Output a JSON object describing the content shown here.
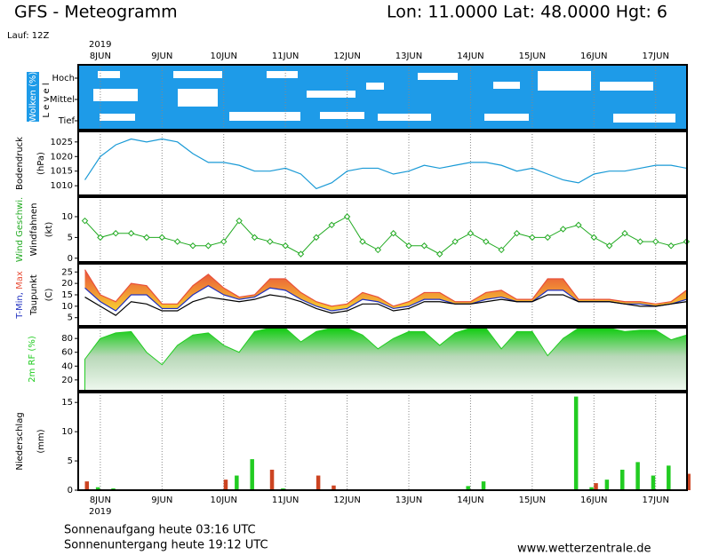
{
  "header": {
    "title": "GFS - Meteogramm",
    "location": "Lon: 11.0000 Lat: 48.0000 Hgt: 6",
    "run": "Lauf: 12Z"
  },
  "time_axis": {
    "year": "2019",
    "xlim": [
      -8.6,
      228.2
    ],
    "xticks": [
      {
        "value": 0,
        "label": "8JUN"
      },
      {
        "value": 24,
        "label": "9JUN"
      },
      {
        "value": 48,
        "label": "10JUN"
      },
      {
        "value": 72,
        "label": "11JUN"
      },
      {
        "value": 96,
        "label": "12JUN"
      },
      {
        "value": 120,
        "label": "13JUN"
      },
      {
        "value": 144,
        "label": "14JUN"
      },
      {
        "value": 168,
        "label": "15JUN"
      },
      {
        "value": 192,
        "label": "16JUN"
      },
      {
        "value": 216,
        "label": "17JUN"
      }
    ],
    "x": [
      -6,
      0,
      6,
      12,
      18,
      24,
      30,
      36,
      42,
      48,
      54,
      60,
      66,
      72,
      78,
      84,
      90,
      96,
      102,
      108,
      114,
      120,
      126,
      132,
      138,
      144,
      150,
      156,
      162,
      168,
      174,
      180,
      186,
      192,
      198,
      204,
      210,
      216,
      222,
      228
    ]
  },
  "chart_data": [
    {
      "type": "cloud",
      "ylabel": "Wolken (%)",
      "ylabel2": "L e v e l",
      "levels": [
        "Hoch",
        "Mittel",
        "Tief"
      ],
      "color": "#1e9be8"
    },
    {
      "type": "line",
      "ylabel": "Bodendruck",
      "yunit": "(hPa)",
      "ylim": [
        1006.7,
        1028.6
      ],
      "yticks": [
        1010,
        1015,
        1020,
        1025
      ],
      "color": "#1a9ad6",
      "values": [
        1012,
        1020,
        1024,
        1026,
        1025,
        1026,
        1025,
        1021,
        1018,
        1018,
        1017,
        1015,
        1015,
        1016,
        1014,
        1009,
        1011,
        1015,
        1016,
        1016,
        1014,
        1015,
        1017,
        1016,
        1017,
        1018,
        1018,
        1017,
        1015,
        1016,
        1014,
        1012,
        1011,
        1014,
        1015,
        1015,
        1016,
        1017,
        1017,
        1016
      ]
    },
    {
      "type": "line",
      "ylabel": "Wind Geschwi.",
      "ylabel2": "Windfahnen",
      "yunit": "(kt)",
      "ylim": [
        -0.9,
        14.7
      ],
      "yticks": [
        0,
        5,
        10
      ],
      "color": "#22aa22",
      "markers": true,
      "values": [
        9,
        5,
        6,
        6,
        5,
        5,
        4,
        3,
        3,
        4,
        9,
        5,
        4,
        3,
        1,
        5,
        8,
        10,
        4,
        2,
        6,
        3,
        3,
        1,
        4,
        6,
        4,
        2,
        6,
        5,
        5,
        7,
        8,
        5,
        3,
        6,
        4,
        4,
        3,
        4
      ]
    },
    {
      "type": "band",
      "ylabel_min": "T-Min,",
      "ylabel_max": "Max",
      "ylabel2": "Taupunkt",
      "yunit": "(C)",
      "ylim": [
        1.4,
        28.6
      ],
      "yticks": [
        5,
        10,
        15,
        20,
        25
      ],
      "series": [
        {
          "color": "#e8503a",
          "values": [
            26,
            15,
            12,
            20,
            19,
            11,
            11,
            19,
            24,
            18,
            14,
            15,
            22,
            22,
            16,
            12,
            10,
            11,
            16,
            14,
            10,
            12,
            16,
            16,
            12,
            12,
            16,
            17,
            13,
            13,
            22,
            22,
            13,
            13,
            13,
            12,
            12,
            11,
            12,
            17
          ]
        },
        {
          "color": "#2030c0",
          "values": [
            18,
            12,
            8,
            15,
            15,
            9,
            9,
            15,
            19,
            15,
            13,
            14,
            18,
            17,
            13,
            10,
            8,
            9,
            13,
            12,
            9,
            10,
            13,
            13,
            11,
            11,
            13,
            14,
            12,
            12,
            17,
            17,
            12,
            12,
            12,
            11,
            11,
            10,
            11,
            13
          ]
        },
        {
          "color": "#000000",
          "values": [
            14,
            10,
            6,
            12,
            11,
            8,
            8,
            12,
            14,
            13,
            12,
            13,
            15,
            14,
            12,
            9,
            7,
            8,
            11,
            11,
            8,
            9,
            12,
            12,
            11,
            11,
            12,
            13,
            12,
            12,
            15,
            15,
            12,
            12,
            12,
            11,
            10,
            10,
            11,
            12
          ]
        }
      ]
    },
    {
      "type": "area",
      "ylabel": "2m RF (%)",
      "ylim": [
        4.4,
        95.6
      ],
      "yticks": [
        20,
        40,
        60,
        80
      ],
      "color": "#22cc22",
      "values": [
        50,
        80,
        88,
        90,
        60,
        42,
        70,
        85,
        88,
        70,
        60,
        90,
        95,
        95,
        75,
        90,
        95,
        95,
        85,
        65,
        80,
        90,
        90,
        70,
        88,
        95,
        95,
        65,
        90,
        90,
        55,
        80,
        95,
        95,
        95,
        90,
        92,
        92,
        78,
        85
      ]
    },
    {
      "type": "bar",
      "ylabel": "Niederschlag",
      "yunit": "(mm)",
      "ylim": [
        0,
        16.7
      ],
      "yticks": [
        0,
        5,
        10,
        15
      ],
      "series": [
        {
          "color": "#22cc22",
          "values": [
            0,
            0.5,
            0.3,
            0,
            0,
            0,
            0,
            0,
            0,
            0,
            2.5,
            5.3,
            0,
            0.3,
            0,
            0,
            0,
            0,
            0,
            0,
            0,
            0,
            0,
            0,
            0,
            0.7,
            1.5,
            0,
            0,
            0,
            0,
            0,
            16,
            0.5,
            1.8,
            3.5,
            4.8,
            2.5,
            4.2,
            0
          ]
        },
        {
          "color": "#cc4422",
          "values": [
            1.5,
            0,
            0,
            0,
            0,
            0,
            0,
            0,
            0,
            1.8,
            0,
            0,
            3.5,
            0,
            0,
            2.5,
            0.8,
            0,
            0,
            0,
            0,
            0,
            0,
            0,
            0,
            0,
            0,
            0,
            0,
            0,
            0,
            0,
            0,
            1.2,
            0,
            0,
            0,
            0,
            0,
            2.8
          ]
        }
      ]
    }
  ],
  "footer": {
    "sunrise": "Sonnenaufgang heute 03:16 UTC",
    "sunset": "Sonnenuntergang heute 19:12 UTC",
    "source": "www.wetterzentrale.de"
  }
}
